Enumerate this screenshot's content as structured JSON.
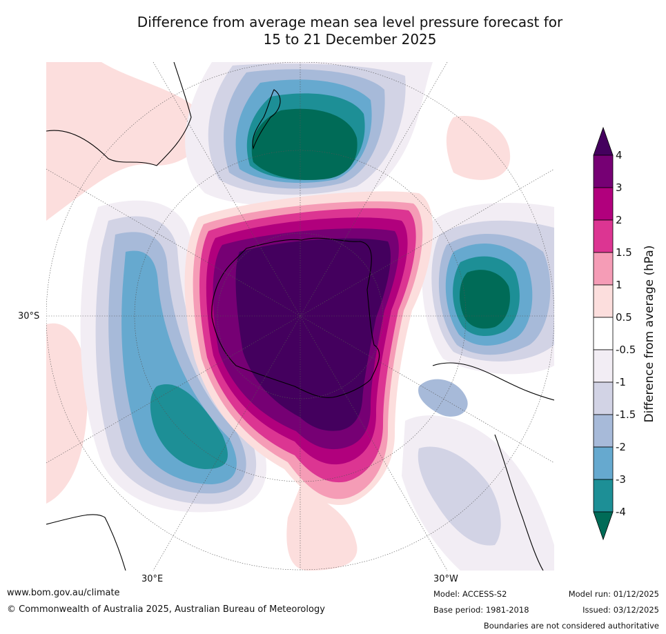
{
  "title": {
    "line1": "Difference from average mean sea level pressure forecast for",
    "line2": "15 to 21 December 2025"
  },
  "map": {
    "projection": "south polar",
    "graticule_labels": {
      "left": "30°S",
      "bottom_left": "30°E",
      "bottom_right": "30°W"
    }
  },
  "legend": {
    "title": "Difference from average (hPa)",
    "tick_labels": [
      "4",
      "3",
      "2",
      "1.5",
      "1",
      "0.5",
      "-0.5",
      "-1",
      "-1.5",
      "-2",
      "-3",
      "-4"
    ],
    "bins": [
      {
        "range": "> 4",
        "color": "#44005e"
      },
      {
        "range": "3 to 4",
        "color": "#760074"
      },
      {
        "range": "2 to 3",
        "color": "#b1007d"
      },
      {
        "range": "1.5 to 2",
        "color": "#dc3592"
      },
      {
        "range": "1 to 1.5",
        "color": "#f59cb6"
      },
      {
        "range": "0.5 to 1",
        "color": "#fcdedd"
      },
      {
        "range": "-0.5 to 0.5",
        "color": "#ffffff"
      },
      {
        "range": "-1 to -0.5",
        "color": "#f2edf4"
      },
      {
        "range": "-1.5 to -1",
        "color": "#d2d3e5"
      },
      {
        "range": "-2 to -1.5",
        "color": "#a7bad9"
      },
      {
        "range": "-3 to -2",
        "color": "#66a9cf"
      },
      {
        "range": "-4 to -3",
        "color": "#1d8f96"
      },
      {
        "range": "< -4",
        "color": "#006b57"
      }
    ]
  },
  "footer": {
    "website": "www.bom.gov.au/climate",
    "copyright": "© Commonwealth of Australia 2025, Australian Bureau of Meteorology",
    "model": "Model: ACCESS-S2",
    "base_period": "Base period: 1981-2018",
    "model_run": "Model run: 01/12/2025",
    "issued": "Issued: 03/12/2025",
    "disclaimer": "Boundaries are not considered authoritative"
  }
}
